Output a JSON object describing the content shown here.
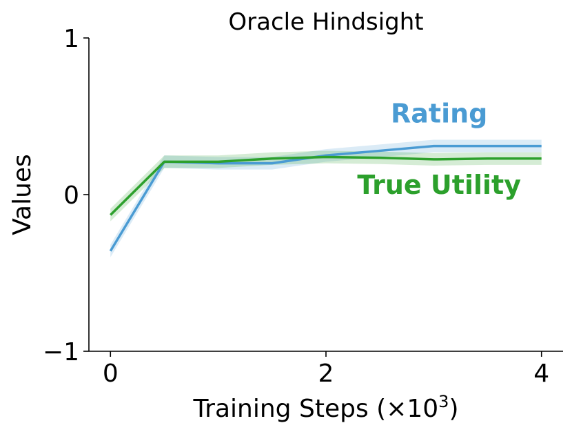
{
  "chart_data": {
    "type": "line",
    "title": "Oracle Hindsight",
    "xlabel_prefix": "Training Steps (×10",
    "xlabel_exp": "3",
    "xlabel_suffix": ")",
    "ylabel": "Values",
    "xlim": [
      -0.2,
      4.2
    ],
    "ylim": [
      -1,
      1
    ],
    "xticks": [
      0,
      2,
      4
    ],
    "xtick_labels": [
      "0",
      "2",
      "4"
    ],
    "yticks": [
      -1,
      0,
      1
    ],
    "ytick_labels": [
      "−1",
      "0",
      "1"
    ],
    "grid": false,
    "legend": "none",
    "series": [
      {
        "name": "Rating",
        "color": "#4a9bd3",
        "x": [
          0,
          0.5,
          1.0,
          1.5,
          2.0,
          2.5,
          3.0,
          3.5,
          4.0
        ],
        "y": [
          -0.36,
          0.21,
          0.2,
          0.2,
          0.25,
          0.28,
          0.31,
          0.31,
          0.31
        ],
        "band": 0.04
      },
      {
        "name": "True Utility",
        "color": "#2ca02c",
        "x": [
          0,
          0.5,
          1.0,
          1.5,
          2.0,
          2.5,
          3.0,
          3.5,
          4.0
        ],
        "y": [
          -0.13,
          0.21,
          0.21,
          0.23,
          0.24,
          0.235,
          0.225,
          0.23,
          0.23
        ],
        "band": 0.04
      }
    ],
    "annotations": [
      {
        "text": "Rating",
        "x": 3.05,
        "y": 0.46,
        "color": "#4a9bd3"
      },
      {
        "text": "True Utility",
        "x": 3.05,
        "y": 0.005,
        "color": "#2ca02c"
      }
    ]
  }
}
